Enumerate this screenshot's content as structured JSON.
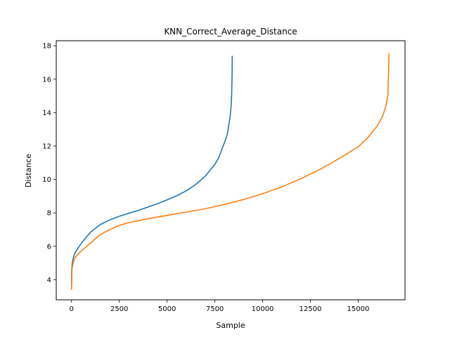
{
  "chart_data": {
    "type": "line",
    "title": "KNN_Correct_Average_Distance",
    "xlabel": "Sample",
    "ylabel": "Distance",
    "xlim": [
      -800,
      17450
    ],
    "ylim": [
      2.8,
      18.3
    ],
    "xticks": [
      0,
      2500,
      5000,
      7500,
      10000,
      12500,
      15000
    ],
    "xtick_labels": [
      "0",
      "2500",
      "5000",
      "7500",
      "10000",
      "12500",
      "15000"
    ],
    "yticks": [
      4,
      6,
      8,
      10,
      12,
      14,
      16,
      18
    ],
    "ytick_labels": [
      "4",
      "6",
      "8",
      "10",
      "12",
      "14",
      "16",
      "18"
    ],
    "grid": false,
    "series": [
      {
        "color": "#1f77b4",
        "x": [
          0,
          10,
          40,
          100,
          200,
          400,
          700,
          1000,
          1500,
          2000,
          2500,
          3000,
          3500,
          4000,
          4500,
          5000,
          5500,
          6000,
          6500,
          7000,
          7500,
          7700,
          7900,
          8050,
          8150,
          8250,
          8300,
          8350,
          8380,
          8400,
          8410
        ],
        "y": [
          3.6,
          4.6,
          5.0,
          5.35,
          5.65,
          6.0,
          6.45,
          6.85,
          7.3,
          7.58,
          7.8,
          7.98,
          8.15,
          8.35,
          8.55,
          8.78,
          9.02,
          9.32,
          9.7,
          10.2,
          10.9,
          11.3,
          11.9,
          12.35,
          12.7,
          13.4,
          13.8,
          14.4,
          15.1,
          16.2,
          17.4
        ]
      },
      {
        "color": "#ff7f0e",
        "x": [
          0,
          20,
          80,
          200,
          400,
          700,
          1000,
          1500,
          2000,
          2500,
          3000,
          4000,
          5000,
          6000,
          7000,
          8000,
          9000,
          10000,
          11000,
          12000,
          13000,
          14000,
          15000,
          15500,
          16000,
          16300,
          16450,
          16550,
          16580,
          16600,
          16610
        ],
        "y": [
          3.4,
          4.6,
          5.0,
          5.35,
          5.6,
          5.9,
          6.2,
          6.7,
          7.0,
          7.25,
          7.42,
          7.65,
          7.85,
          8.05,
          8.25,
          8.5,
          8.8,
          9.15,
          9.55,
          10.05,
          10.6,
          11.25,
          11.95,
          12.5,
          13.2,
          13.85,
          14.4,
          15.0,
          16.0,
          16.8,
          17.55
        ]
      }
    ]
  }
}
